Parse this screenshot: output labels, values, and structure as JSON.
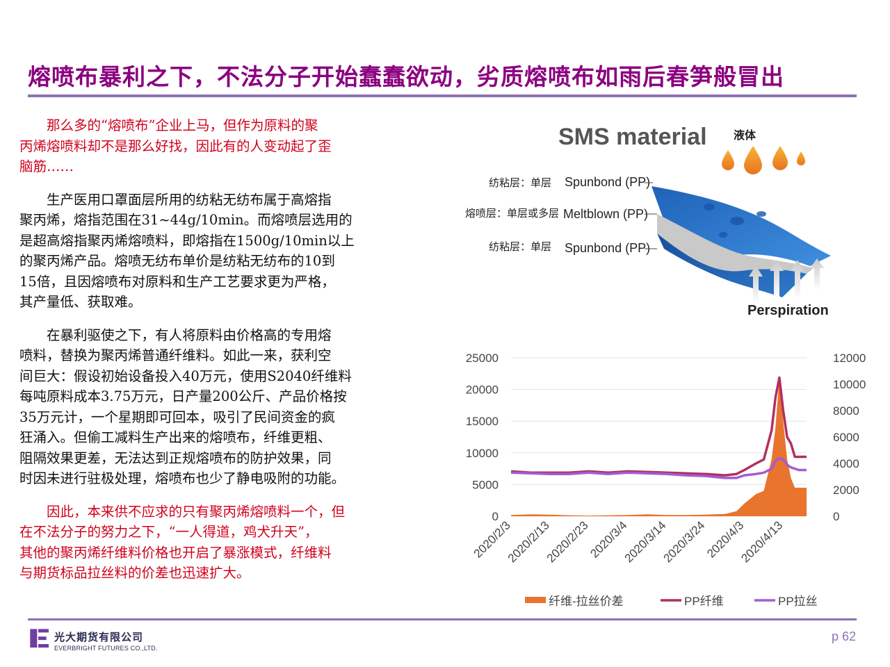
{
  "title": "熔喷布暴利之下，不法分子开始蠢蠢欲动，劣质熔喷布如雨后春笋般冒出",
  "paragraphs": [
    {
      "lines": [
        "那么多的“熔喷布”企业上马，但作为原料的聚",
        "丙烯熔喷料却不是那么好找，因此有的人变动起了歪",
        "脑筋……"
      ],
      "color": "#D0021B"
    },
    {
      "lines": [
        "生产医用口罩面层所用的纺粘无纺布属于高熔指",
        "聚丙烯，熔指范围在31~44g/10min。而熔喷层选用的",
        "是超高熔指聚丙烯熔喷料，即熔指在1500g/10min以上",
        "的聚丙烯产品。熔喷无纺布单价是纺粘无纺布的10到",
        "15倍，且因熔喷布对原料和生产工艺要求更为严格，",
        "其产量低、获取难。"
      ],
      "color": "#111111"
    },
    {
      "lines": [
        "在暴利驱使之下，有人将原料由价格高的专用熔",
        "喷料，替换为聚丙烯普通纤维料。如此一来，获利空",
        "间巨大：假设初始设备投入40万元，使用S2040纤维料",
        "每吨原料成本3.75万元，日产量200公斤、产品价格按",
        "35万元计，一个星期即可回本，吸引了民间资金的疯",
        "狂涌入。但偷工减料生产出来的熔喷布，纤维更粗、",
        "阻隔效果更差，无法达到正规熔喷布的防护效果，同",
        "时因未进行驻极处理，熔喷布也少了静电吸附的功能。"
      ],
      "color": "#111111"
    },
    {
      "lines": [
        "因此，本来供不应求的只有聚丙烯熔喷料一个，但",
        "在不法分子的努力之下，“一人得道，鸡犬升天”，",
        "其他的聚丙烯纤维料价格也开启了暴涨模式，纤维料",
        "与期货标品拉丝料的价差也迅速扩大。"
      ],
      "color": "#D0021B"
    }
  ],
  "sms": {
    "title": "SMS material",
    "liquid": "液体",
    "layer1": "纺粘层：单层",
    "layer1_en": "Spunbond (PP)",
    "layer2": "熔喷层：单层或多层",
    "layer2_en": "Meltblown (PP)",
    "layer3": "纺粘层：单层",
    "layer3_en": "Spunbond (PP)",
    "perspiration": "Perspiration"
  },
  "chart_data": {
    "type": "line",
    "x_labels": [
      "2020/2/3",
      "2020/2/13",
      "2020/2/23",
      "2020/3/4",
      "2020/3/14",
      "2020/3/24",
      "2020/4/3",
      "2020/4/13"
    ],
    "x_range": [
      "2020/2/3",
      "2020/4/19"
    ],
    "y_left": {
      "min": 0,
      "max": 25000,
      "ticks": [
        0,
        5000,
        10000,
        15000,
        20000,
        25000
      ]
    },
    "y_right": {
      "min": 0,
      "max": 12000,
      "ticks": [
        0,
        2000,
        4000,
        6000,
        8000,
        10000,
        12000
      ]
    },
    "grid": true,
    "legend_position": "bottom",
    "series": [
      {
        "name": "纤维-拉丝价差",
        "type": "area",
        "axis": "left",
        "color": "#E8742E",
        "x": [
          "2020/2/3",
          "2020/2/8",
          "2020/2/13",
          "2020/2/18",
          "2020/2/23",
          "2020/2/28",
          "2020/3/4",
          "2020/3/9",
          "2020/3/14",
          "2020/3/19",
          "2020/3/24",
          "2020/3/29",
          "2020/4/1",
          "2020/4/3",
          "2020/4/6",
          "2020/4/8",
          "2020/4/10",
          "2020/4/11",
          "2020/4/12",
          "2020/4/13",
          "2020/4/14",
          "2020/4/15",
          "2020/4/16",
          "2020/4/17",
          "2020/4/19"
        ],
        "values": [
          200,
          300,
          250,
          150,
          100,
          150,
          200,
          300,
          200,
          200,
          250,
          350,
          800,
          2000,
          3500,
          4000,
          9000,
          14000,
          22000,
          15000,
          9000,
          6000,
          4500,
          4500,
          4500
        ]
      },
      {
        "name": "PP纤维",
        "type": "line",
        "axis": "right",
        "color": "#B03060",
        "x": [
          "2020/2/3",
          "2020/2/8",
          "2020/2/13",
          "2020/2/18",
          "2020/2/23",
          "2020/2/28",
          "2020/3/4",
          "2020/3/9",
          "2020/3/14",
          "2020/3/19",
          "2020/3/24",
          "2020/3/29",
          "2020/4/1",
          "2020/4/3",
          "2020/4/6",
          "2020/4/8",
          "2020/4/10",
          "2020/4/11",
          "2020/4/12",
          "2020/4/13",
          "2020/4/14",
          "2020/4/15",
          "2020/4/16",
          "2020/4/17",
          "2020/4/19"
        ],
        "values": [
          3400,
          3300,
          3300,
          3300,
          3400,
          3300,
          3400,
          3350,
          3300,
          3250,
          3200,
          3100,
          3200,
          3500,
          4000,
          4300,
          6500,
          9000,
          10500,
          8000,
          6000,
          5500,
          4500,
          4500,
          4500
        ]
      },
      {
        "name": "PP拉丝",
        "type": "line",
        "axis": "right",
        "color": "#A45CD1",
        "x": [
          "2020/2/3",
          "2020/2/8",
          "2020/2/13",
          "2020/2/18",
          "2020/2/23",
          "2020/2/28",
          "2020/3/4",
          "2020/3/9",
          "2020/3/14",
          "2020/3/19",
          "2020/3/24",
          "2020/3/29",
          "2020/4/1",
          "2020/4/3",
          "2020/4/6",
          "2020/4/8",
          "2020/4/10",
          "2020/4/11",
          "2020/4/12",
          "2020/4/13",
          "2020/4/14",
          "2020/4/15",
          "2020/4/16",
          "2020/4/17",
          "2020/4/19"
        ],
        "values": [
          3300,
          3250,
          3200,
          3200,
          3300,
          3200,
          3300,
          3250,
          3200,
          3100,
          3050,
          2900,
          2900,
          3100,
          3200,
          3300,
          3600,
          4200,
          4400,
          4300,
          3900,
          3700,
          3600,
          3500,
          3500
        ]
      }
    ]
  },
  "footer": {
    "company_cn": "光大期货有限公司",
    "company_en": "EVERBRIGHT FUTURES CO.,LTD.",
    "page": "p 62"
  }
}
